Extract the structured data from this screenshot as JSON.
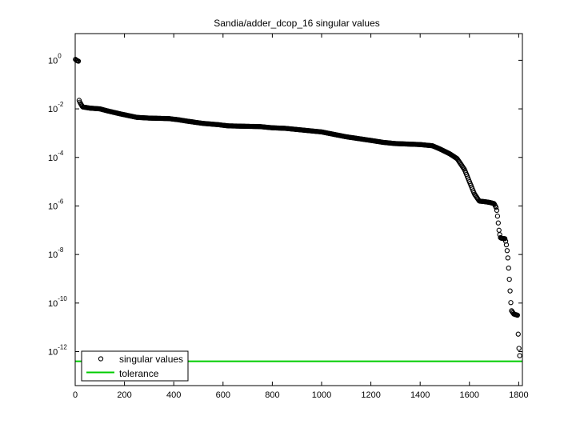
{
  "chart_data": {
    "type": "scatter",
    "title": "Sandia/adder_dcop_16 singular values",
    "xlabel": "",
    "ylabel": "",
    "xlim": [
      0,
      1815
    ],
    "ylim_log10": [
      -13.4,
      1.1
    ],
    "y_scale": "log",
    "grid": false,
    "legend_position": "bottom-left",
    "x_ticks": [
      0,
      200,
      400,
      600,
      800,
      1000,
      1200,
      1400,
      1600,
      1800
    ],
    "y_ticks": [
      {
        "base": "10",
        "exp": "0",
        "log10": 0
      },
      {
        "base": "10",
        "exp": "-2",
        "log10": -2
      },
      {
        "base": "10",
        "exp": "-4",
        "log10": -4
      },
      {
        "base": "10",
        "exp": "-6",
        "log10": -6
      },
      {
        "base": "10",
        "exp": "-8",
        "log10": -8
      },
      {
        "base": "10",
        "exp": "-10",
        "log10": -10
      },
      {
        "base": "10",
        "exp": "-12",
        "log10": -12
      }
    ],
    "series": [
      {
        "name": "singular values",
        "marker": "circle",
        "color": "#000000",
        "curve_log10": [
          [
            0,
            0.05
          ],
          [
            5,
            0.0
          ],
          [
            10,
            -0.02
          ],
          [
            15,
            -0.05
          ],
          [
            16,
            -1.65
          ],
          [
            20,
            -1.75
          ],
          [
            30,
            -1.92
          ],
          [
            60,
            -1.97
          ],
          [
            100,
            -2.0
          ],
          [
            130,
            -2.08
          ],
          [
            180,
            -2.2
          ],
          [
            250,
            -2.35
          ],
          [
            300,
            -2.38
          ],
          [
            380,
            -2.4
          ],
          [
            420,
            -2.45
          ],
          [
            450,
            -2.5
          ],
          [
            520,
            -2.6
          ],
          [
            580,
            -2.65
          ],
          [
            620,
            -2.7
          ],
          [
            700,
            -2.72
          ],
          [
            750,
            -2.73
          ],
          [
            800,
            -2.78
          ],
          [
            850,
            -2.8
          ],
          [
            900,
            -2.85
          ],
          [
            1000,
            -2.95
          ],
          [
            1050,
            -3.05
          ],
          [
            1100,
            -3.15
          ],
          [
            1200,
            -3.3
          ],
          [
            1250,
            -3.38
          ],
          [
            1300,
            -3.43
          ],
          [
            1350,
            -3.45
          ],
          [
            1400,
            -3.47
          ],
          [
            1450,
            -3.52
          ],
          [
            1480,
            -3.65
          ],
          [
            1520,
            -3.85
          ],
          [
            1550,
            -4.05
          ],
          [
            1580,
            -4.5
          ],
          [
            1600,
            -5.0
          ],
          [
            1620,
            -5.5
          ],
          [
            1640,
            -5.8
          ],
          [
            1660,
            -5.82
          ],
          [
            1680,
            -5.85
          ],
          [
            1700,
            -5.9
          ],
          [
            1710,
            -6.1
          ],
          [
            1715,
            -6.5
          ],
          [
            1720,
            -7.0
          ],
          [
            1725,
            -7.3
          ],
          [
            1730,
            -7.33
          ],
          [
            1745,
            -7.35
          ],
          [
            1750,
            -7.6
          ],
          [
            1755,
            -8.0
          ],
          [
            1760,
            -8.7
          ],
          [
            1765,
            -9.5
          ],
          [
            1770,
            -10.3
          ],
          [
            1780,
            -10.45
          ],
          [
            1795,
            -10.5
          ],
          [
            1800,
            -11.8
          ],
          [
            1803,
            -12.0
          ],
          [
            1806,
            -12.5
          ]
        ],
        "n": 1806
      },
      {
        "name": "tolerance",
        "type": "line",
        "color": "#00cc00",
        "y_log10": -12.4
      }
    ]
  }
}
